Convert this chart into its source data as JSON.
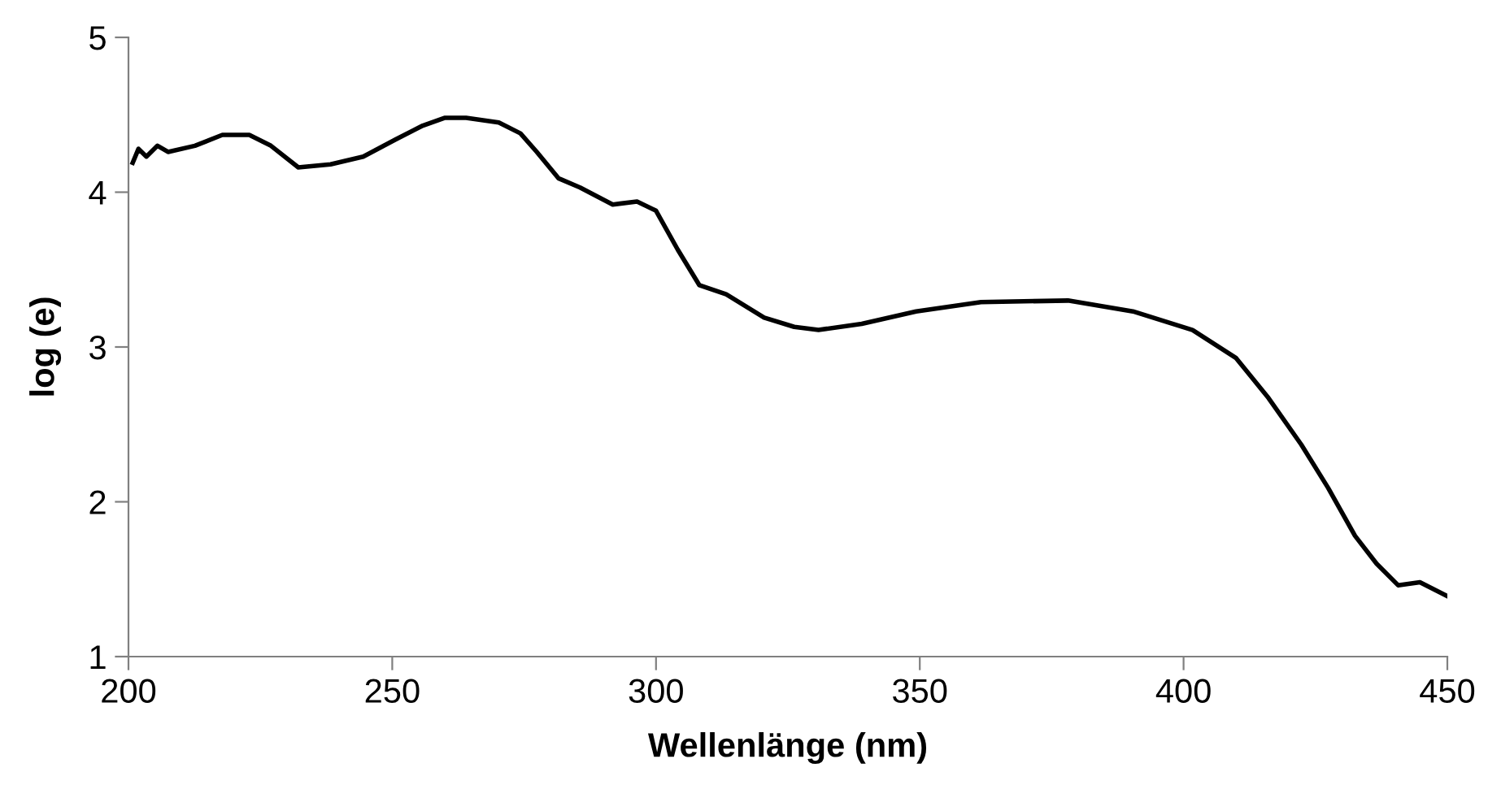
{
  "chart_data": {
    "type": "line",
    "xlabel": "Wellenlänge (nm)",
    "ylabel": "log (e)",
    "xlim": [
      200,
      450
    ],
    "ylim": [
      1,
      5
    ],
    "xticks": [
      200,
      250,
      300,
      350,
      400,
      450
    ],
    "yticks": [
      1,
      2,
      3,
      4,
      5
    ],
    "grid": false,
    "marker": "none",
    "line_style": "solid",
    "series": [
      {
        "color": "#000000",
        "x": [
          200.8,
          201.9,
          203.4,
          205.5,
          207.5,
          212.6,
          217.8,
          222.9,
          227.0,
          232.2,
          238.3,
          244.5,
          250.6,
          255.8,
          259.9,
          264.0,
          270.2,
          274.3,
          277.4,
          281.5,
          285.6,
          291.8,
          296.4,
          300.0,
          304.1,
          308.2,
          313.3,
          320.5,
          326.2,
          330.8,
          339.0,
          349.3,
          361.6,
          378.1,
          390.4,
          401.7,
          409.9,
          416.1,
          422.3,
          427.4,
          432.5,
          436.6,
          440.7,
          444.8,
          450.0
        ],
        "values": [
          4.19,
          4.28,
          4.23,
          4.3,
          4.26,
          4.3,
          4.37,
          4.37,
          4.3,
          4.16,
          4.18,
          4.23,
          4.34,
          4.43,
          4.48,
          4.48,
          4.45,
          4.38,
          4.26,
          4.09,
          4.03,
          3.92,
          3.94,
          3.88,
          3.63,
          3.4,
          3.34,
          3.19,
          3.13,
          3.11,
          3.15,
          3.23,
          3.29,
          3.3,
          3.23,
          3.11,
          2.93,
          2.67,
          2.37,
          2.09,
          1.78,
          1.6,
          1.46,
          1.48,
          1.39
        ]
      }
    ]
  }
}
